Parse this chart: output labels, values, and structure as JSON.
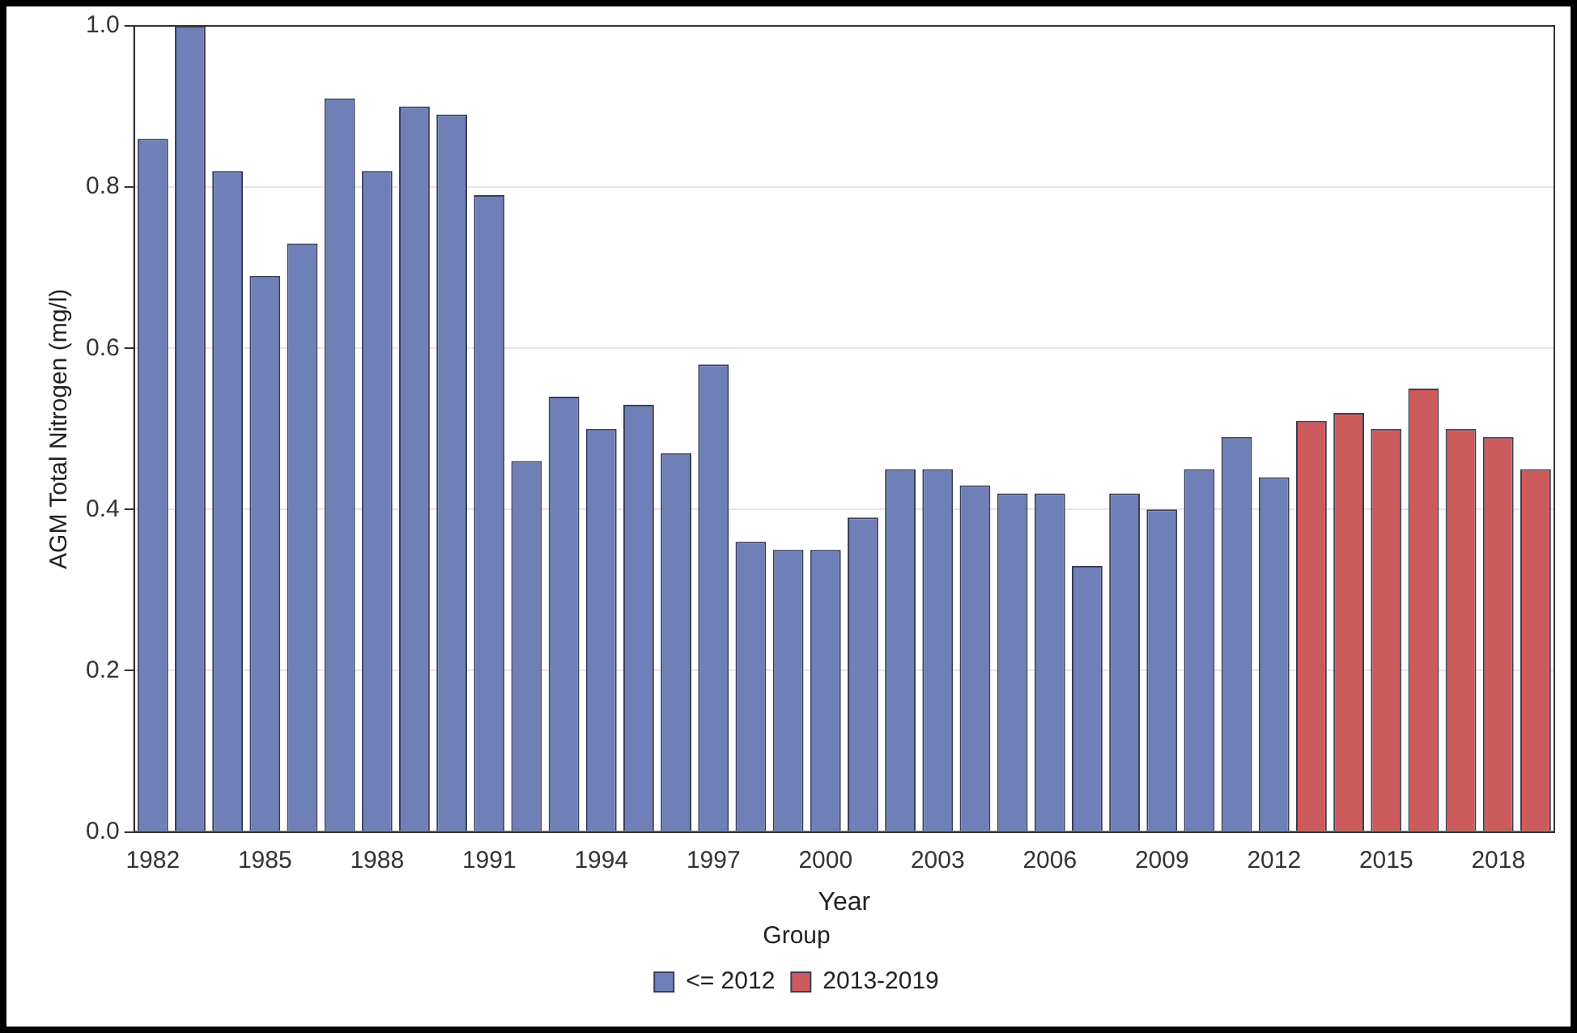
{
  "chart_data": {
    "type": "bar",
    "xlabel": "Year",
    "ylabel": "AGM Total Nitrogen (mg/l)",
    "legend_title": "Group",
    "categories": [
      "1982",
      null,
      null,
      "1985",
      null,
      null,
      "1988",
      null,
      null,
      "1991",
      null,
      null,
      "1994",
      null,
      null,
      "1997",
      null,
      null,
      "2000",
      null,
      null,
      "2003",
      null,
      null,
      "2006",
      null,
      null,
      "2009",
      null,
      null,
      "2012",
      null,
      null,
      "2015",
      null,
      null,
      "2018",
      null
    ],
    "series": [
      {
        "name": "<= 2012",
        "color": "#6f7fb8",
        "values": [
          0.86,
          1.0,
          0.82,
          0.69,
          0.73,
          0.91,
          0.82,
          0.9,
          0.89,
          0.79,
          0.46,
          0.54,
          0.5,
          0.53,
          0.47,
          0.58,
          0.36,
          0.35,
          0.35,
          0.39,
          0.45,
          0.45,
          0.43,
          0.42,
          0.42,
          0.33,
          0.42,
          0.4,
          0.45,
          0.49,
          0.44,
          null,
          null,
          null,
          null,
          null,
          null,
          null
        ]
      },
      {
        "name": "2013-2019",
        "color": "#cd5b5b",
        "values": [
          null,
          null,
          null,
          null,
          null,
          null,
          null,
          null,
          null,
          null,
          null,
          null,
          null,
          null,
          null,
          null,
          null,
          null,
          null,
          null,
          null,
          null,
          null,
          null,
          null,
          null,
          null,
          null,
          null,
          null,
          null,
          0.51,
          0.52,
          0.5,
          0.55,
          0.5,
          0.49,
          0.45
        ]
      }
    ],
    "ylim": [
      0,
      1.0
    ],
    "yticks": [
      {
        "value": 0,
        "label": "0.0"
      },
      {
        "value": 0.2,
        "label": "0.2"
      },
      {
        "value": 0.4,
        "label": "0.4"
      },
      {
        "value": 0.6,
        "label": "0.6"
      },
      {
        "value": 0.8,
        "label": "0.8"
      },
      {
        "value": 1.0,
        "label": "1.0"
      }
    ],
    "grid": "y",
    "legend": "bottom"
  }
}
